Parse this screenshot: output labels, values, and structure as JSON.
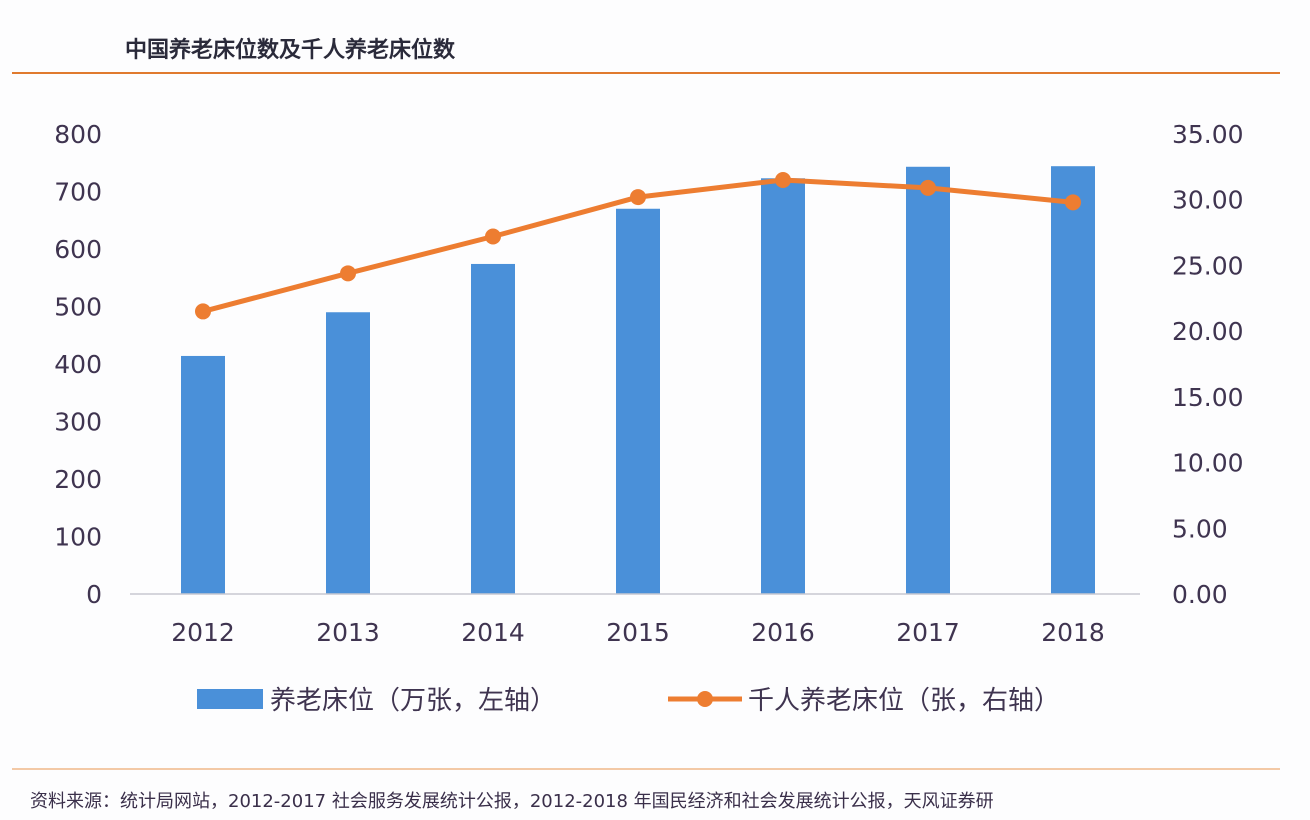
{
  "title": "中国养老床位数及千人养老床位数",
  "source": "资料来源：统计局网站，2012-2017 社会服务发展统计公报，2012-2018 年国民经济和社会发展统计公报，天风证券研",
  "chart_data": {
    "type": "bar+line",
    "categories": [
      "2012",
      "2013",
      "2014",
      "2015",
      "2016",
      "2017",
      "2018"
    ],
    "series": [
      {
        "name": "养老床位（万张，左轴）",
        "type": "bar",
        "axis": "left",
        "color": "#4a90d9",
        "values": [
          414,
          490,
          574,
          670,
          723,
          743,
          744
        ]
      },
      {
        "name": "千人养老床位（张，右轴）",
        "type": "line",
        "axis": "right",
        "color": "#ed7d31",
        "values": [
          21.5,
          24.4,
          27.2,
          30.2,
          31.5,
          30.9,
          29.8
        ]
      }
    ],
    "left_axis": {
      "ylim": [
        0,
        800
      ],
      "ticks": [
        "0",
        "100",
        "200",
        "300",
        "400",
        "500",
        "600",
        "700",
        "800"
      ]
    },
    "right_axis": {
      "ylim": [
        0,
        35
      ],
      "ticks": [
        "0.00",
        "5.00",
        "10.00",
        "15.00",
        "20.00",
        "25.00",
        "30.00",
        "35.00"
      ]
    },
    "grid": false,
    "legend_position": "bottom"
  }
}
